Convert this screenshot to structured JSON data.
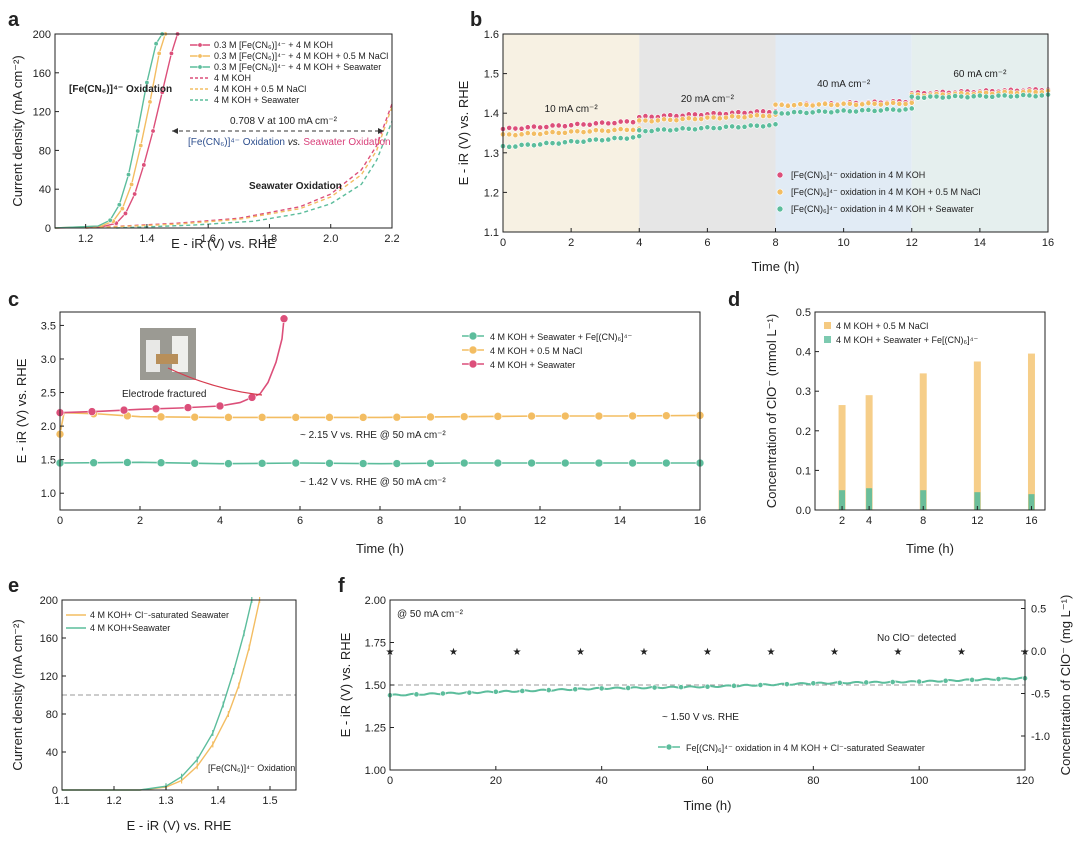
{
  "colors": {
    "red": "#dc4f7a",
    "orange": "#f3bd62",
    "green": "#5cbd9c",
    "darkblue": "#2e4f8e",
    "pink": "#d9407a",
    "grid": "#999999"
  },
  "panels": {
    "a": {
      "label": "a",
      "xlabel": "E - iR (V) vs. RHE",
      "ylabel": "Current density (mA cm⁻²)",
      "xticks": [
        "1.2",
        "1.4",
        "1.6",
        "1.8",
        "2.0",
        "2.2"
      ],
      "yticks": [
        "0",
        "40",
        "80",
        "120",
        "160",
        "200"
      ],
      "legend": [
        "0.3 M [Fe(CN₆)]⁴⁻ + 4 M KOH",
        "0.3 M [Fe(CN₆)]⁴⁻ + 4 M KOH + 0.5 M NaCl",
        "0.3 M [Fe(CN₆)]⁴⁻ + 4 M KOH + Seawater",
        "4 M KOH",
        "4 M KOH + 0.5 M NaCl",
        "4 M KOH + Seawater"
      ],
      "ann_oxid": "[Fe(CN₆)]⁴⁻ Oxidation",
      "ann_gap": "0.708 V at 100 mA cm⁻²",
      "ann_vs_a": "[Fe(CN₆)]⁴⁻ Oxidation",
      "ann_vs_b": " vs. ",
      "ann_vs_c": "Seawater Oxidation",
      "ann_sea": "Seawater Oxidation"
    },
    "b": {
      "label": "b",
      "xlabel": "Time (h)",
      "ylabel": "E - iR (V) vs. RHE",
      "xticks": [
        "0",
        "2",
        "4",
        "6",
        "8",
        "10",
        "12",
        "14",
        "16"
      ],
      "yticks": [
        "1.1",
        "1.2",
        "1.3",
        "1.4",
        "1.5",
        "1.6"
      ],
      "segments": [
        "10 mA cm⁻²",
        "20 mA cm⁻²",
        "40 mA cm⁻²",
        "60 mA cm⁻²"
      ],
      "legend": [
        "[Fe(CN)₆]⁴⁻ oxidation in 4 M KOH",
        "[Fe(CN)₆]⁴⁻ oxidation in 4 M KOH + 0.5 M NaCl",
        "[Fe(CN)₆]⁴⁻ oxidation in 4 M KOH + Seawater"
      ]
    },
    "c": {
      "label": "c",
      "xlabel": "Time (h)",
      "ylabel": "E - iR (V) vs. RHE",
      "xticks": [
        "0",
        "2",
        "4",
        "6",
        "8",
        "10",
        "12",
        "14",
        "16"
      ],
      "yticks": [
        "1.0",
        "1.5",
        "2.0",
        "2.5",
        "3.0",
        "3.5"
      ],
      "legend": [
        "4 M KOH + Seawater + Fe[(CN)₆]⁴⁻",
        "4 M KOH + 0.5 M NaCl",
        "4 M KOH + Seawater"
      ],
      "ann_fract": "Electrode fractured",
      "ann_215": "~ 2.15 V vs. RHE @ 50 mA cm⁻²",
      "ann_142": "~ 1.42 V vs. RHE @ 50 mA cm⁻²"
    },
    "d": {
      "label": "d",
      "xlabel": "Time (h)",
      "ylabel": "Concentration of ClO⁻ (mmol L⁻¹)",
      "xticks": [
        "2",
        "4",
        "8",
        "12",
        "16"
      ],
      "yticks": [
        "0.0",
        "0.1",
        "0.2",
        "0.3",
        "0.4",
        "0.5"
      ],
      "legend": [
        "4 M KOH + 0.5 M NaCl",
        "4 M KOH + Seawater + Fe[(CN)₆]⁴⁻"
      ]
    },
    "e": {
      "label": "e",
      "xlabel": "E - iR (V) vs. RHE",
      "ylabel": "Current density (mA cm⁻²)",
      "xticks": [
        "1.1",
        "1.2",
        "1.3",
        "1.4",
        "1.5"
      ],
      "yticks": [
        "0",
        "40",
        "80",
        "120",
        "160",
        "200"
      ],
      "legend": [
        "4 M KOH+ Cl⁻-saturated Seawater",
        "4 M KOH+Seawater"
      ],
      "ann": "[Fe(CN₆)]⁴⁻ Oxidation"
    },
    "f": {
      "label": "f",
      "xlabel": "Time (h)",
      "ylabel": "E - iR (V) vs. RHE",
      "ylabel2": "Concentration of ClO⁻ (mg L⁻¹)",
      "xticks": [
        "0",
        "20",
        "40",
        "60",
        "80",
        "100",
        "120"
      ],
      "yticks": [
        "1.00",
        "1.25",
        "1.50",
        "1.75",
        "2.00"
      ],
      "y2ticks": [
        "-1.0",
        "-0.5",
        "0.0",
        "0.5"
      ],
      "legend": [
        "Fe[(CN)₆]⁴⁻ oxidation in 4 M KOH + Cl⁻-saturated Seawater"
      ],
      "ann_50": "@ 50 mA cm⁻²",
      "ann_no": "No ClO⁻ detected",
      "ann_150": "~ 1.50 V vs. RHE"
    }
  },
  "chart_data": [
    {
      "panel": "a",
      "type": "line",
      "xlabel": "E - iR (V) vs. RHE",
      "ylabel": "Current density (mA cm⁻²)",
      "xlim": [
        1.1,
        2.2
      ],
      "ylim": [
        0,
        200
      ],
      "series": [
        {
          "name": "0.3 M [Fe(CN₆)]⁴⁻ + 4 M KOH",
          "x": [
            1.1,
            1.25,
            1.3,
            1.33,
            1.36,
            1.39,
            1.42,
            1.45,
            1.48,
            1.5
          ],
          "y": [
            0,
            1,
            5,
            15,
            35,
            65,
            100,
            140,
            180,
            200
          ]
        },
        {
          "name": "0.3 M [Fe(CN₆)]⁴⁻ + 4 M KOH + 0.5 M NaCl",
          "x": [
            1.1,
            1.25,
            1.29,
            1.32,
            1.35,
            1.38,
            1.41,
            1.44,
            1.46
          ],
          "y": [
            0,
            2,
            7,
            20,
            45,
            85,
            130,
            180,
            200
          ]
        },
        {
          "name": "0.3 M [Fe(CN₆)]⁴⁻ + 4 M KOH + Seawater",
          "x": [
            1.1,
            1.24,
            1.28,
            1.31,
            1.34,
            1.37,
            1.4,
            1.43,
            1.45
          ],
          "y": [
            0,
            2,
            8,
            24,
            55,
            100,
            150,
            190,
            200
          ]
        },
        {
          "name": "4 M KOH",
          "x": [
            1.2,
            1.5,
            1.7,
            1.9,
            2.0,
            2.1,
            2.15,
            2.2
          ],
          "y": [
            0,
            5,
            10,
            22,
            35,
            60,
            85,
            128
          ]
        },
        {
          "name": "4 M KOH + 0.5 M NaCl",
          "x": [
            1.2,
            1.5,
            1.7,
            1.9,
            2.0,
            2.1,
            2.15,
            2.2
          ],
          "y": [
            0,
            4,
            9,
            20,
            32,
            55,
            80,
            125
          ]
        },
        {
          "name": "4 M KOH + Seawater",
          "x": [
            1.3,
            1.55,
            1.75,
            1.9,
            2.0,
            2.1,
            2.15,
            2.2
          ],
          "y": [
            0,
            3,
            7,
            15,
            25,
            45,
            70,
            110
          ]
        }
      ]
    },
    {
      "panel": "b",
      "type": "scatter",
      "xlabel": "Time (h)",
      "ylabel": "E - iR (V) vs. RHE",
      "xlim": [
        0,
        16
      ],
      "ylim": [
        1.1,
        1.6
      ],
      "series": [
        {
          "name": "[Fe(CN)₆]⁴⁻ oxidation in 4 M KOH",
          "x": [
            0,
            4,
            4,
            8,
            8,
            12,
            12,
            16
          ],
          "y": [
            1.36,
            1.38,
            1.39,
            1.405,
            1.42,
            1.43,
            1.45,
            1.46
          ]
        },
        {
          "name": "[Fe(CN)₆]⁴⁻ oxidation in 4 M KOH + 0.5 M NaCl",
          "x": [
            0,
            4,
            4,
            8,
            8,
            12,
            12,
            16
          ],
          "y": [
            1.345,
            1.36,
            1.38,
            1.395,
            1.42,
            1.425,
            1.445,
            1.455
          ]
        },
        {
          "name": "[Fe(CN)₆]⁴⁻ oxidation in 4 M KOH + Seawater",
          "x": [
            0,
            4,
            4,
            8,
            8,
            12,
            12,
            16
          ],
          "y": [
            1.315,
            1.34,
            1.355,
            1.37,
            1.4,
            1.41,
            1.44,
            1.445
          ]
        }
      ]
    },
    {
      "panel": "c",
      "type": "line",
      "xlabel": "Time (h)",
      "ylabel": "E - iR (V) vs. RHE",
      "xlim": [
        0,
        16
      ],
      "ylim": [
        0.75,
        3.7
      ],
      "series": [
        {
          "name": "4 M KOH + Seawater + Fe[(CN)₆]⁴⁻",
          "x": [
            0,
            2,
            4,
            6,
            8,
            10,
            12,
            14,
            16
          ],
          "y": [
            1.45,
            1.46,
            1.44,
            1.45,
            1.44,
            1.45,
            1.45,
            1.45,
            1.45
          ]
        },
        {
          "name": "4 M KOH + 0.5 M NaCl",
          "x": [
            0,
            0.1,
            1,
            2,
            4,
            6,
            8,
            10,
            12,
            14,
            16
          ],
          "y": [
            1.88,
            2.2,
            2.18,
            2.14,
            2.13,
            2.13,
            2.13,
            2.14,
            2.15,
            2.15,
            2.16
          ]
        },
        {
          "name": "4 M KOH + Seawater",
          "x": [
            0,
            1,
            2,
            3,
            4,
            4.5,
            5,
            5.2,
            5.4,
            5.55,
            5.6
          ],
          "y": [
            2.2,
            2.22,
            2.25,
            2.27,
            2.3,
            2.35,
            2.48,
            2.65,
            2.95,
            3.3,
            3.6
          ]
        }
      ]
    },
    {
      "panel": "d",
      "type": "bar",
      "xlabel": "Time (h)",
      "ylabel": "Concentration of ClO⁻ (mmol L⁻¹)",
      "ylim": [
        0,
        0.5
      ],
      "categories": [
        "2",
        "4",
        "8",
        "12",
        "16"
      ],
      "series": [
        {
          "name": "4 M KOH + 0.5 M NaCl",
          "values": [
            0.265,
            0.29,
            0.345,
            0.375,
            0.395
          ]
        },
        {
          "name": "4 M KOH + Seawater + Fe[(CN)₆]⁴⁻",
          "values": [
            0.05,
            0.055,
            0.05,
            0.045,
            0.04
          ]
        }
      ]
    },
    {
      "panel": "e",
      "type": "line",
      "xlabel": "E - iR (V) vs. RHE",
      "ylabel": "Current density (mA cm⁻²)",
      "xlim": [
        1.1,
        1.55
      ],
      "ylim": [
        0,
        200
      ],
      "reference_y": 100,
      "series": [
        {
          "name": "4 M KOH+ Cl⁻-saturated Seawater",
          "x": [
            1.1,
            1.25,
            1.3,
            1.33,
            1.36,
            1.39,
            1.42,
            1.44,
            1.46,
            1.48
          ],
          "y": [
            0,
            0,
            3,
            10,
            25,
            48,
            80,
            110,
            150,
            200
          ]
        },
        {
          "name": "4 M KOH+Seawater",
          "x": [
            1.1,
            1.25,
            1.3,
            1.33,
            1.36,
            1.39,
            1.41,
            1.43,
            1.45,
            1.465
          ],
          "y": [
            0,
            0,
            4,
            14,
            32,
            60,
            90,
            125,
            165,
            200
          ]
        }
      ]
    },
    {
      "panel": "f",
      "type": "line",
      "xlabel": "Time (h)",
      "ylabel": "E - iR (V) vs. RHE",
      "ylabel2": "Concentration of ClO⁻ (mg L⁻¹)",
      "xlim": [
        0,
        120
      ],
      "ylim": [
        1.0,
        2.0
      ],
      "y2lim": [
        -1.4,
        0.6
      ],
      "reference_y": 1.5,
      "series": [
        {
          "name": "Fe[(CN)₆]⁴⁻ oxidation in 4 M KOH + Cl⁻-saturated Seawater",
          "x": [
            0,
            20,
            40,
            60,
            80,
            100,
            120
          ],
          "y": [
            1.44,
            1.46,
            1.48,
            1.49,
            1.51,
            1.52,
            1.54
          ]
        },
        {
          "name": "ClO⁻ concentration",
          "axis": "right",
          "x": [
            0,
            12,
            24,
            36,
            48,
            60,
            72,
            84,
            96,
            108,
            120
          ],
          "y": [
            0,
            0,
            0,
            0,
            0,
            0,
            0,
            0,
            0,
            0,
            0
          ]
        }
      ]
    }
  ]
}
